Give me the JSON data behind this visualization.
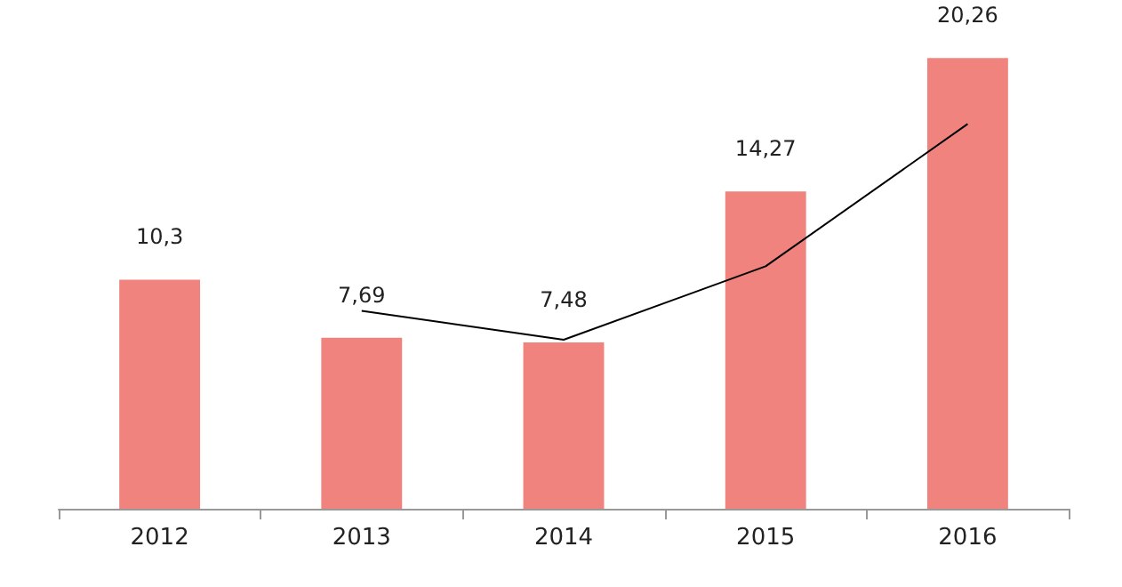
{
  "chart_data": {
    "type": "bar",
    "categories": [
      "2012",
      "2013",
      "2014",
      "2015",
      "2016"
    ],
    "series": [
      {
        "color": "#f0837d",
        "values": [
          10.3,
          7.69,
          7.48,
          14.27,
          20.26
        ],
        "value_labels": [
          "10,3",
          "7,69",
          "7,48",
          "14,27",
          "20,26"
        ]
      },
      {
        "type": "line",
        "color": "#000000",
        "values": [
          null,
          8.9,
          7.6,
          10.9,
          17.3
        ]
      }
    ],
    "marker": "none",
    "grid": false
  }
}
